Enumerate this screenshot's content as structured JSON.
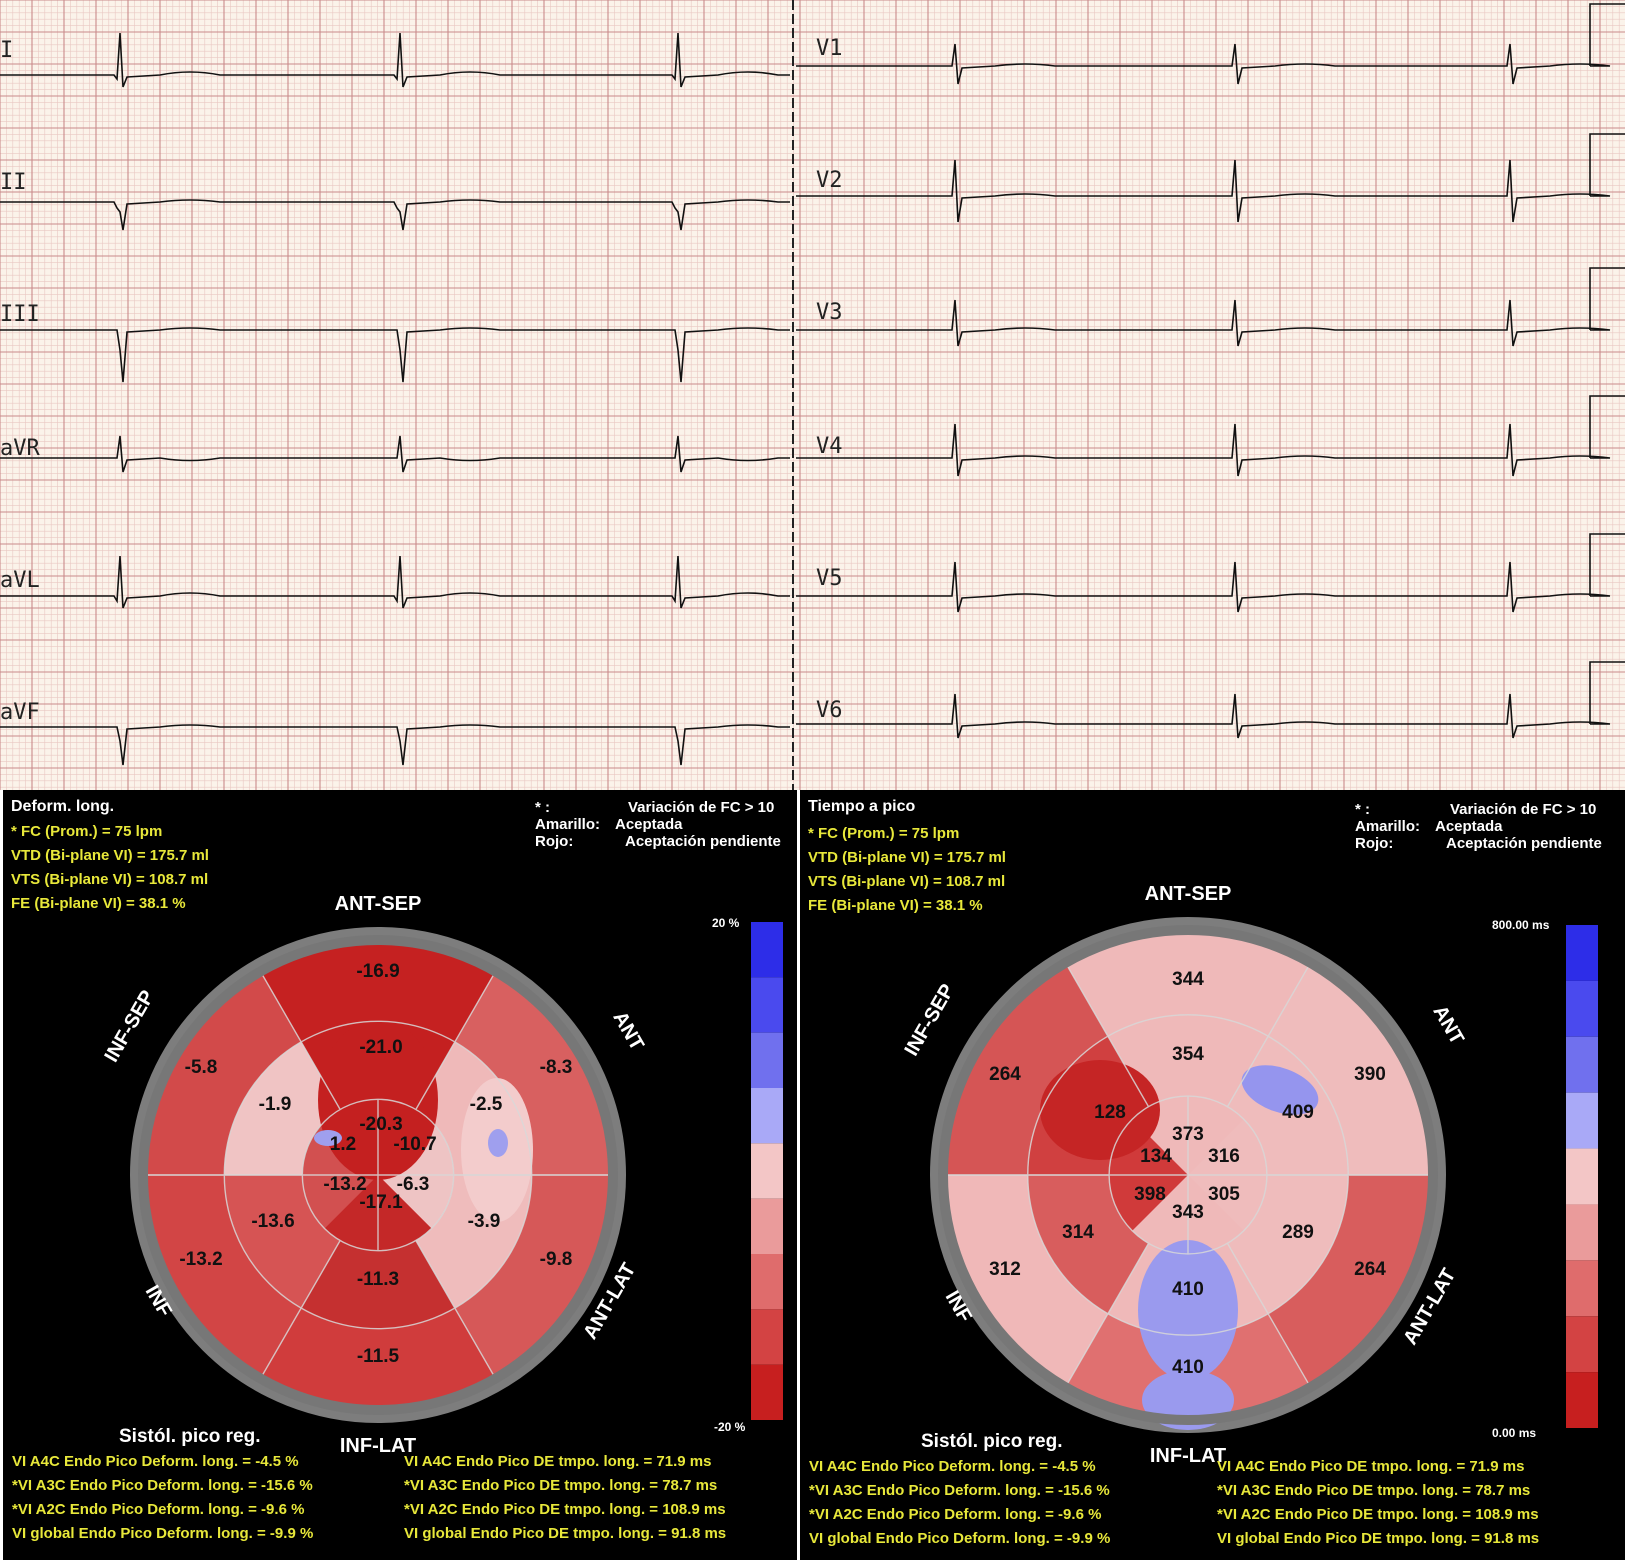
{
  "ecg": {
    "leads_left": [
      "I",
      "II",
      "III",
      "aVR",
      "aVL",
      "aVF"
    ],
    "leads_right": [
      "V1",
      "V2",
      "V3",
      "V4",
      "V5",
      "V6"
    ]
  },
  "left_panel": {
    "title": "Deform. long.",
    "stats": [
      "* FC (Prom.) = 75 lpm",
      "VTD (Bi-plane VI) = 175.7 ml",
      "VTS (Bi-plane VI) = 108.7 ml",
      "FE (Bi-plane VI) = 38.1 %"
    ],
    "legend": {
      "star": "* :",
      "star_text": "Variación de FC > 10",
      "yellow_label": "Amarillo:",
      "yellow_text": "Aceptada",
      "red_label": "Rojo:",
      "red_text": "Aceptación pendiente"
    },
    "wall_labels": {
      "ant_sep": "ANT-SEP",
      "inf_lat": "INF-LAT",
      "inf_sep": "INF-SEP",
      "ant": "ANT",
      "inf": "INF",
      "ant_lat": "ANT-LAT"
    },
    "colorbar": {
      "max": "20 %",
      "min": "-20 %"
    },
    "segments": [
      "-16.9",
      "-21.0",
      "-5.8",
      "-8.3",
      "-1.9",
      "-2.5",
      "-20.3",
      "1.2",
      "-10.7",
      "-13.2",
      "-6.3",
      "-17.1",
      "-13.6",
      "-3.9",
      "-13.2",
      "-9.8",
      "-11.3",
      "-11.5"
    ],
    "summary_title": "Sistól. pico reg.",
    "summary_left": [
      "VI A4C Endo Pico Deform. long. = -4.5 %",
      "*VI A3C Endo Pico Deform. long. = -15.6 %",
      "*VI A2C Endo Pico Deform. long. = -9.6 %",
      "VI global Endo Pico Deform. long. = -9.9 %"
    ],
    "summary_right": [
      "VI A4C Endo Pico DE tmpo. long. = 71.9 ms",
      "*VI A3C Endo Pico DE tmpo. long. = 78.7 ms",
      "*VI A2C Endo Pico DE tmpo. long. = 108.9 ms",
      "VI global Endo Pico DE tmpo. long. = 91.8 ms"
    ]
  },
  "right_panel": {
    "title": "Tiempo a pico",
    "stats": [
      "* FC (Prom.) = 75 lpm",
      "VTD (Bi-plane VI) = 175.7 ml",
      "VTS (Bi-plane VI) = 108.7 ml",
      "FE (Bi-plane VI) = 38.1 %"
    ],
    "legend": {
      "star": "* :",
      "star_text": "Variación de FC > 10",
      "yellow_label": "Amarillo:",
      "yellow_text": "Aceptada",
      "red_label": "Rojo:",
      "red_text": "Aceptación pendiente"
    },
    "wall_labels": {
      "ant_sep": "ANT-SEP",
      "inf_lat": "INF-LAT",
      "inf_sep": "INF-SEP",
      "ant": "ANT",
      "inf": "INF",
      "ant_lat": "ANT-LAT"
    },
    "colorbar": {
      "max": "800.00 ms",
      "min": "0.00 ms"
    },
    "segments": [
      "344",
      "354",
      "264",
      "390",
      "128",
      "409",
      "373",
      "134",
      "316",
      "398",
      "305",
      "343",
      "314",
      "289",
      "312",
      "264",
      "410",
      "410"
    ],
    "summary_title": "Sistól. pico reg.",
    "summary_left": [
      "VI A4C Endo Pico Deform. long. = -4.5 %",
      "*VI A3C Endo Pico Deform. long. = -15.6 %",
      "*VI A2C Endo Pico Deform. long. = -9.6 %",
      "VI global Endo Pico Deform. long. = -9.9 %"
    ],
    "summary_right": [
      "VI A4C Endo Pico DE tmpo. long. = 71.9 ms",
      "*VI A3C Endo Pico DE tmpo. long. = 78.7 ms",
      "*VI A2C Endo Pico DE tmpo. long. = 108.9 ms",
      "VI global Endo Pico DE tmpo. long. = 91.8 ms"
    ]
  }
}
